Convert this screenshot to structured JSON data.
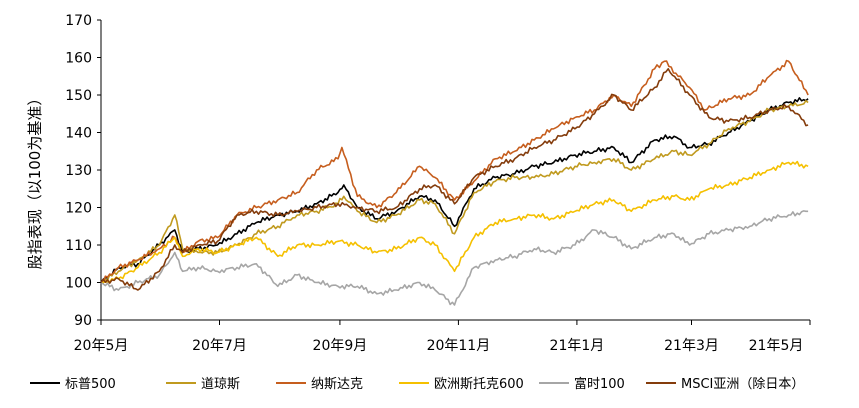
{
  "chart_data": {
    "type": "line",
    "ylabel": "股指表现（以100为基准）",
    "ylim": [
      90,
      170
    ],
    "yticks": [
      90,
      100,
      110,
      120,
      130,
      140,
      150,
      160,
      170
    ],
    "xlim": [
      "2020-05-01",
      "2021-05-01"
    ],
    "xticks": [
      {
        "date": "2020-05-01",
        "label": "20年5月"
      },
      {
        "date": "2020-07-01",
        "label": "20年7月"
      },
      {
        "date": "2020-09-01",
        "label": "20年9月"
      },
      {
        "date": "2020-11-01",
        "label": "20年11月"
      },
      {
        "date": "2021-01-01",
        "label": "21年1月"
      },
      {
        "date": "2021-03-01",
        "label": "21年3月"
      },
      {
        "date": "2021-05-01",
        "label": "21年5月"
      }
    ],
    "legend_position": "bottom",
    "grid": false,
    "series": [
      {
        "name": "标普500",
        "color": "#000000",
        "points": [
          [
            "2020-05-01",
            100
          ],
          [
            "2020-05-10",
            104
          ],
          [
            "2020-05-20",
            105
          ],
          [
            "2020-05-31",
            110
          ],
          [
            "2020-06-08",
            114
          ],
          [
            "2020-06-12",
            108
          ],
          [
            "2020-06-20",
            109
          ],
          [
            "2020-06-30",
            110
          ],
          [
            "2020-07-10",
            113
          ],
          [
            "2020-07-20",
            116
          ],
          [
            "2020-07-31",
            118
          ],
          [
            "2020-08-10",
            119
          ],
          [
            "2020-08-20",
            121
          ],
          [
            "2020-08-31",
            124
          ],
          [
            "2020-09-03",
            126
          ],
          [
            "2020-09-10",
            120
          ],
          [
            "2020-09-20",
            117
          ],
          [
            "2020-09-30",
            119
          ],
          [
            "2020-10-12",
            123
          ],
          [
            "2020-10-20",
            122
          ],
          [
            "2020-10-30",
            115
          ],
          [
            "2020-11-09",
            125
          ],
          [
            "2020-11-20",
            128
          ],
          [
            "2020-11-30",
            129
          ],
          [
            "2020-12-10",
            131
          ],
          [
            "2020-12-20",
            132
          ],
          [
            "2020-12-31",
            134
          ],
          [
            "2021-01-10",
            135
          ],
          [
            "2021-01-20",
            136
          ],
          [
            "2021-01-29",
            132
          ],
          [
            "2021-02-10",
            138
          ],
          [
            "2021-02-20",
            139
          ],
          [
            "2021-02-28",
            136
          ],
          [
            "2021-03-10",
            137
          ],
          [
            "2021-03-20",
            140
          ],
          [
            "2021-03-31",
            143
          ],
          [
            "2021-04-10",
            146
          ],
          [
            "2021-04-20",
            148
          ],
          [
            "2021-04-30",
            149
          ]
        ]
      },
      {
        "name": "道琼斯",
        "color": "#C09A1F",
        "points": [
          [
            "2020-05-01",
            100
          ],
          [
            "2020-05-10",
            103
          ],
          [
            "2020-05-20",
            106
          ],
          [
            "2020-05-31",
            110
          ],
          [
            "2020-06-08",
            118
          ],
          [
            "2020-06-12",
            109
          ],
          [
            "2020-06-20",
            108
          ],
          [
            "2020-06-30",
            108
          ],
          [
            "2020-07-10",
            110
          ],
          [
            "2020-07-20",
            113
          ],
          [
            "2020-07-31",
            115
          ],
          [
            "2020-08-10",
            118
          ],
          [
            "2020-08-20",
            119
          ],
          [
            "2020-08-31",
            121
          ],
          [
            "2020-09-03",
            123
          ],
          [
            "2020-09-10",
            119
          ],
          [
            "2020-09-20",
            116
          ],
          [
            "2020-09-30",
            118
          ],
          [
            "2020-10-12",
            122
          ],
          [
            "2020-10-20",
            121
          ],
          [
            "2020-10-30",
            113
          ],
          [
            "2020-11-09",
            124
          ],
          [
            "2020-11-20",
            127
          ],
          [
            "2020-11-30",
            128
          ],
          [
            "2020-12-10",
            128
          ],
          [
            "2020-12-20",
            129
          ],
          [
            "2020-12-31",
            131
          ],
          [
            "2021-01-10",
            132
          ],
          [
            "2021-01-20",
            133
          ],
          [
            "2021-01-29",
            130
          ],
          [
            "2021-02-10",
            133
          ],
          [
            "2021-02-20",
            135
          ],
          [
            "2021-02-28",
            134
          ],
          [
            "2021-03-10",
            137
          ],
          [
            "2021-03-20",
            141
          ],
          [
            "2021-03-31",
            143
          ],
          [
            "2021-04-10",
            146
          ],
          [
            "2021-04-20",
            147
          ],
          [
            "2021-04-30",
            148
          ]
        ]
      },
      {
        "name": "纳斯达克",
        "color": "#C65E1E",
        "points": [
          [
            "2020-05-01",
            100
          ],
          [
            "2020-05-10",
            104
          ],
          [
            "2020-05-20",
            106
          ],
          [
            "2020-05-31",
            109
          ],
          [
            "2020-06-08",
            112
          ],
          [
            "2020-06-12",
            108
          ],
          [
            "2020-06-20",
            111
          ],
          [
            "2020-06-30",
            112
          ],
          [
            "2020-07-10",
            118
          ],
          [
            "2020-07-20",
            120
          ],
          [
            "2020-07-31",
            122
          ],
          [
            "2020-08-10",
            124
          ],
          [
            "2020-08-20",
            130
          ],
          [
            "2020-08-31",
            133
          ],
          [
            "2020-09-02",
            136
          ],
          [
            "2020-09-10",
            123
          ],
          [
            "2020-09-20",
            120
          ],
          [
            "2020-09-30",
            124
          ],
          [
            "2020-10-12",
            131
          ],
          [
            "2020-10-20",
            128
          ],
          [
            "2020-10-30",
            122
          ],
          [
            "2020-11-09",
            127
          ],
          [
            "2020-11-20",
            133
          ],
          [
            "2020-11-30",
            135
          ],
          [
            "2020-12-10",
            138
          ],
          [
            "2020-12-20",
            141
          ],
          [
            "2020-12-31",
            144
          ],
          [
            "2021-01-10",
            146
          ],
          [
            "2021-01-20",
            150
          ],
          [
            "2021-01-29",
            147
          ],
          [
            "2021-02-10",
            157
          ],
          [
            "2021-02-15",
            159
          ],
          [
            "2021-02-28",
            152
          ],
          [
            "2021-03-08",
            146
          ],
          [
            "2021-03-20",
            149
          ],
          [
            "2021-03-31",
            150
          ],
          [
            "2021-04-10",
            155
          ],
          [
            "2021-04-20",
            159
          ],
          [
            "2021-04-30",
            150
          ]
        ]
      },
      {
        "name": "欧洲斯托克600",
        "color": "#F5C000",
        "points": [
          [
            "2020-05-01",
            100
          ],
          [
            "2020-05-10",
            101
          ],
          [
            "2020-05-20",
            104
          ],
          [
            "2020-05-31",
            108
          ],
          [
            "2020-06-08",
            112
          ],
          [
            "2020-06-12",
            107
          ],
          [
            "2020-06-20",
            109
          ],
          [
            "2020-06-30",
            108
          ],
          [
            "2020-07-10",
            110
          ],
          [
            "2020-07-20",
            112
          ],
          [
            "2020-07-31",
            107
          ],
          [
            "2020-08-10",
            110
          ],
          [
            "2020-08-20",
            110
          ],
          [
            "2020-08-31",
            111
          ],
          [
            "2020-09-10",
            110
          ],
          [
            "2020-09-20",
            108
          ],
          [
            "2020-09-30",
            109
          ],
          [
            "2020-10-12",
            112
          ],
          [
            "2020-10-20",
            110
          ],
          [
            "2020-10-30",
            103
          ],
          [
            "2020-11-09",
            112
          ],
          [
            "2020-11-20",
            116
          ],
          [
            "2020-11-30",
            117
          ],
          [
            "2020-12-10",
            118
          ],
          [
            "2020-12-20",
            117
          ],
          [
            "2020-12-31",
            119
          ],
          [
            "2021-01-10",
            121
          ],
          [
            "2021-01-20",
            122
          ],
          [
            "2021-01-29",
            119
          ],
          [
            "2021-02-10",
            122
          ],
          [
            "2021-02-20",
            123
          ],
          [
            "2021-02-28",
            122
          ],
          [
            "2021-03-10",
            125
          ],
          [
            "2021-03-20",
            126
          ],
          [
            "2021-03-31",
            128
          ],
          [
            "2021-04-10",
            130
          ],
          [
            "2021-04-20",
            132
          ],
          [
            "2021-04-30",
            131
          ]
        ]
      },
      {
        "name": "富时100",
        "color": "#A6A6A6",
        "points": [
          [
            "2020-05-01",
            100
          ],
          [
            "2020-05-10",
            98
          ],
          [
            "2020-05-20",
            100
          ],
          [
            "2020-05-31",
            102
          ],
          [
            "2020-06-08",
            108
          ],
          [
            "2020-06-12",
            103
          ],
          [
            "2020-06-20",
            104
          ],
          [
            "2020-06-30",
            103
          ],
          [
            "2020-07-10",
            104
          ],
          [
            "2020-07-20",
            105
          ],
          [
            "2020-07-31",
            99
          ],
          [
            "2020-08-10",
            102
          ],
          [
            "2020-08-20",
            100
          ],
          [
            "2020-08-31",
            99
          ],
          [
            "2020-09-10",
            99
          ],
          [
            "2020-09-20",
            97
          ],
          [
            "2020-09-30",
            98
          ],
          [
            "2020-10-12",
            100
          ],
          [
            "2020-10-20",
            98
          ],
          [
            "2020-10-30",
            94
          ],
          [
            "2020-11-09",
            104
          ],
          [
            "2020-11-20",
            106
          ],
          [
            "2020-11-30",
            107
          ],
          [
            "2020-12-10",
            109
          ],
          [
            "2020-12-20",
            108
          ],
          [
            "2020-12-31",
            110
          ],
          [
            "2021-01-10",
            114
          ],
          [
            "2021-01-20",
            112
          ],
          [
            "2021-01-29",
            109
          ],
          [
            "2021-02-10",
            112
          ],
          [
            "2021-02-20",
            113
          ],
          [
            "2021-02-28",
            110
          ],
          [
            "2021-03-10",
            113
          ],
          [
            "2021-03-20",
            114
          ],
          [
            "2021-03-31",
            115
          ],
          [
            "2021-04-10",
            117
          ],
          [
            "2021-04-20",
            118
          ],
          [
            "2021-04-30",
            119
          ]
        ]
      },
      {
        "name": "MSCI亚洲（除日本）",
        "color": "#843C0C",
        "points": [
          [
            "2020-05-01",
            100
          ],
          [
            "2020-05-10",
            101
          ],
          [
            "2020-05-20",
            98
          ],
          [
            "2020-05-31",
            103
          ],
          [
            "2020-06-08",
            110
          ],
          [
            "2020-06-12",
            108
          ],
          [
            "2020-06-20",
            110
          ],
          [
            "2020-06-30",
            111
          ],
          [
            "2020-07-10",
            118
          ],
          [
            "2020-07-20",
            119
          ],
          [
            "2020-07-31",
            118
          ],
          [
            "2020-08-10",
            119
          ],
          [
            "2020-08-20",
            120
          ],
          [
            "2020-08-31",
            121
          ],
          [
            "2020-09-10",
            120
          ],
          [
            "2020-09-20",
            119
          ],
          [
            "2020-09-30",
            120
          ],
          [
            "2020-10-12",
            125
          ],
          [
            "2020-10-20",
            126
          ],
          [
            "2020-10-30",
            121
          ],
          [
            "2020-11-09",
            128
          ],
          [
            "2020-11-20",
            131
          ],
          [
            "2020-11-30",
            133
          ],
          [
            "2020-12-10",
            136
          ],
          [
            "2020-12-20",
            138
          ],
          [
            "2020-12-31",
            141
          ],
          [
            "2021-01-10",
            145
          ],
          [
            "2021-01-20",
            150
          ],
          [
            "2021-01-29",
            146
          ],
          [
            "2021-02-10",
            152
          ],
          [
            "2021-02-17",
            157
          ],
          [
            "2021-02-28",
            150
          ],
          [
            "2021-03-10",
            144
          ],
          [
            "2021-03-20",
            143
          ],
          [
            "2021-03-31",
            144
          ],
          [
            "2021-04-10",
            146
          ],
          [
            "2021-04-20",
            147
          ],
          [
            "2021-04-30",
            142
          ]
        ]
      }
    ]
  }
}
